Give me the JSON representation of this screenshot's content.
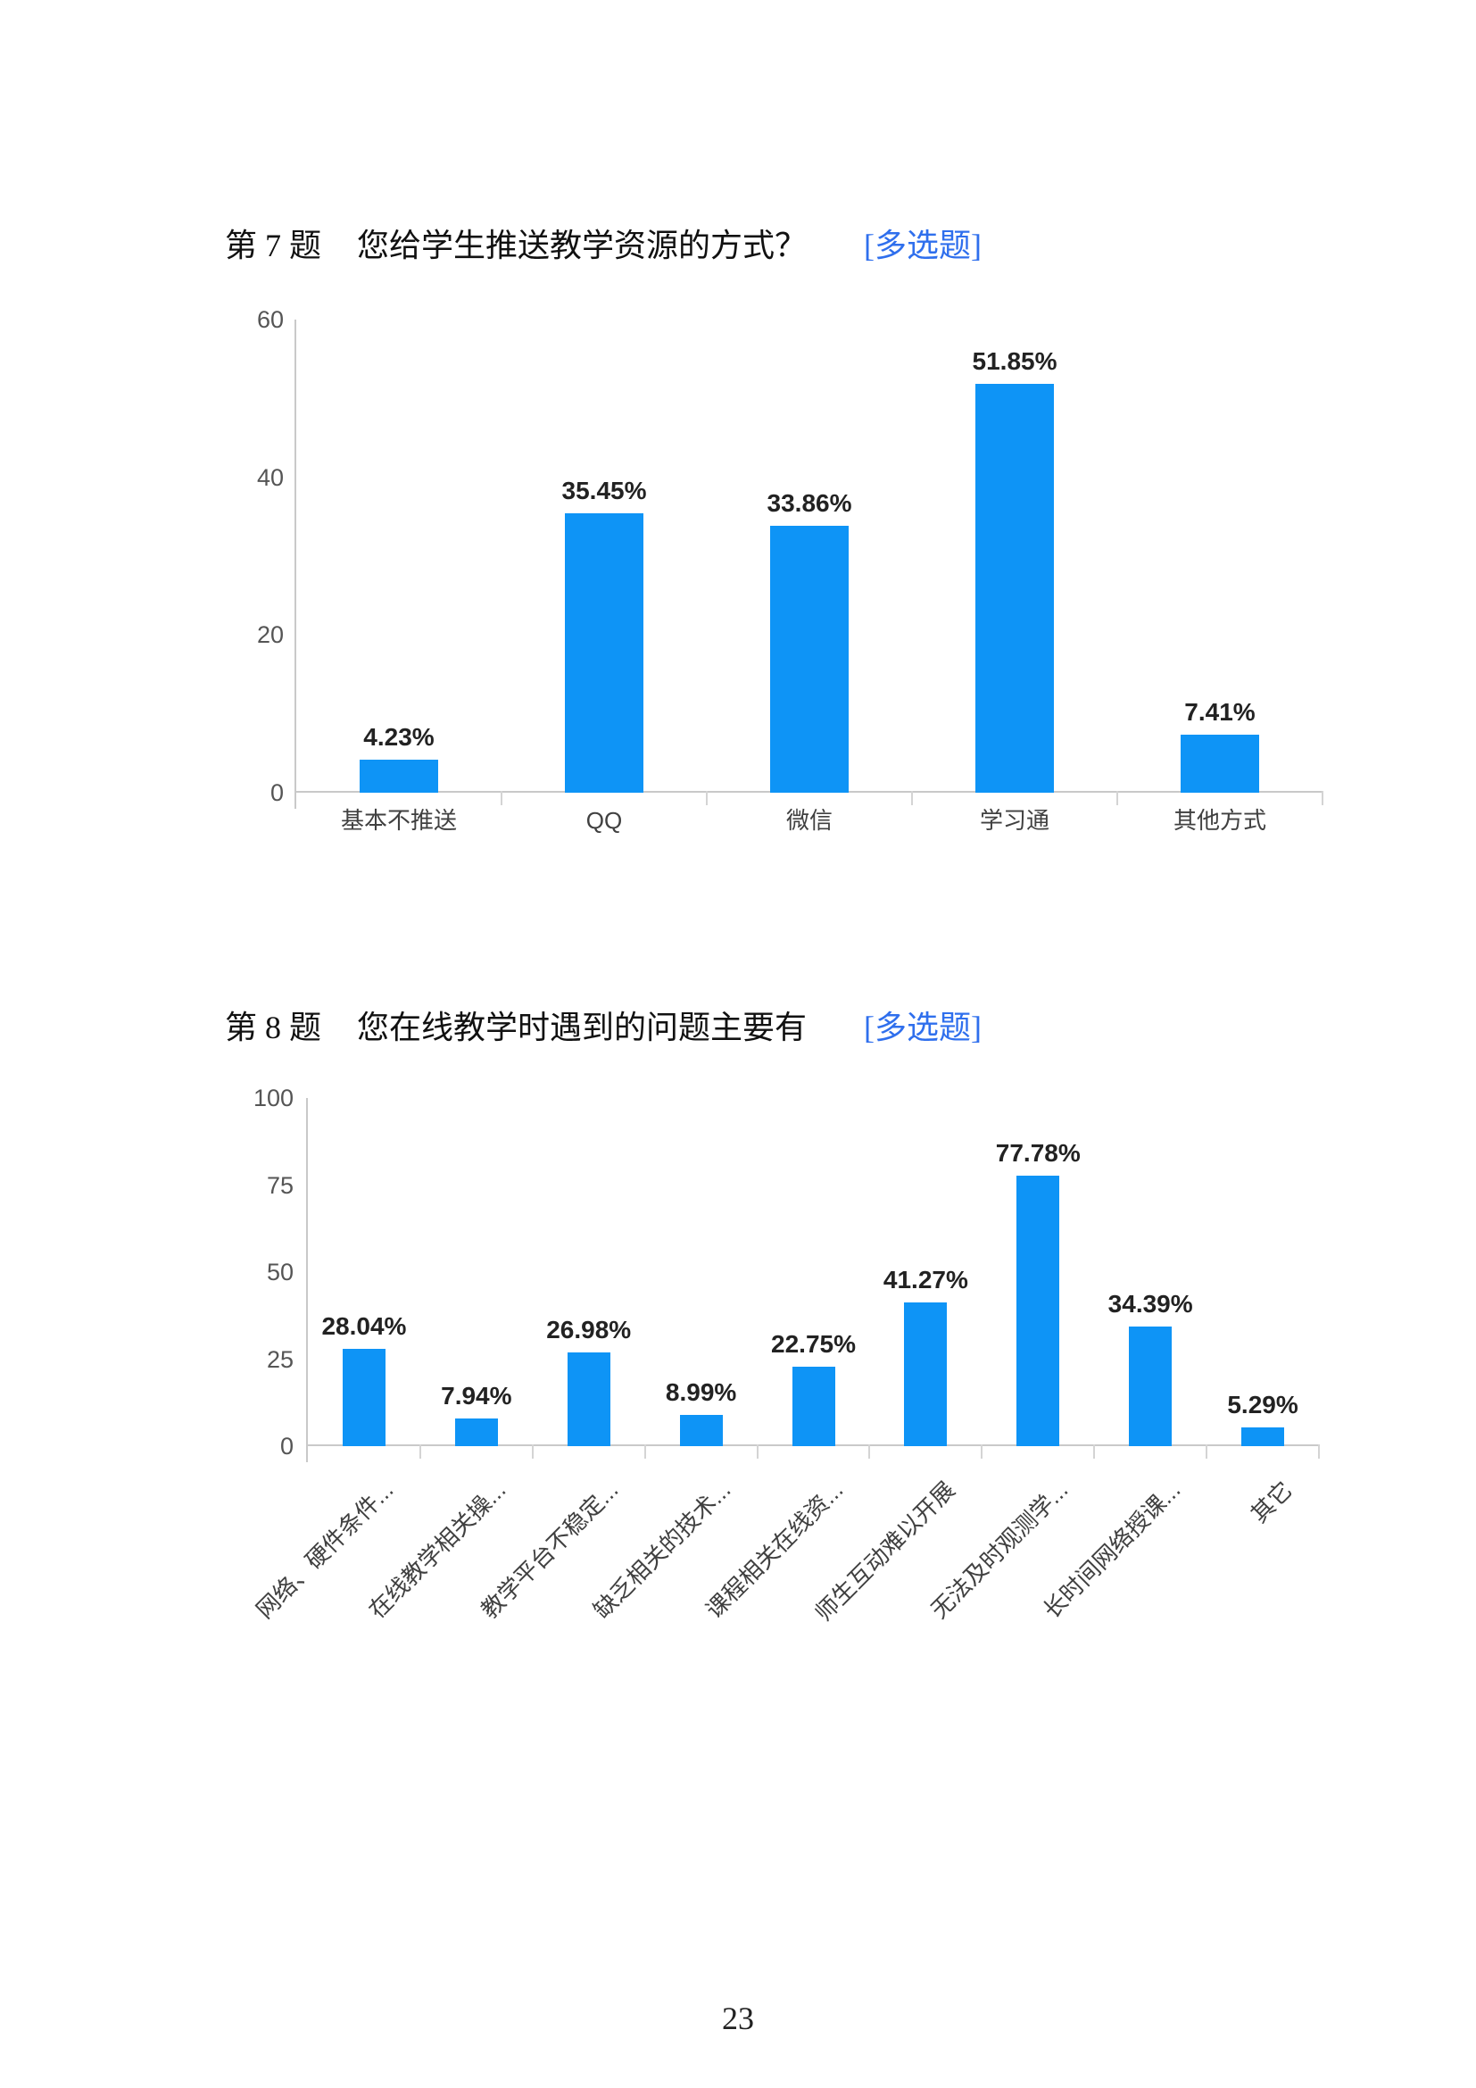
{
  "page_number": "23",
  "colors": {
    "bar_blue": "#0E94F6",
    "tag_blue": "#2F6FED",
    "axis_gray": "#C9C9C9"
  },
  "questions": [
    {
      "label": "第 7 题",
      "text": "您给学生推送教学资源的方式？",
      "tag": "[多选题]"
    },
    {
      "label": "第 8 题",
      "text": "您在线教学时遇到的问题主要有",
      "tag": "[多选题]"
    }
  ],
  "chart_data": [
    {
      "type": "bar",
      "title": "第7题 您给学生推送教学资源的方式？",
      "categories": [
        "基本不推送",
        "QQ",
        "微信",
        "学习通",
        "其他方式"
      ],
      "values": [
        4.23,
        35.45,
        33.86,
        51.85,
        7.41
      ],
      "value_labels": [
        "4.23%",
        "35.45%",
        "33.86%",
        "51.85%",
        "7.41%"
      ],
      "xlabel": "",
      "ylabel": "",
      "ylim": [
        0,
        60
      ],
      "yticks": [
        60,
        40,
        20,
        0
      ],
      "grid": false,
      "legend": "none",
      "bar_color": "#0E94F6",
      "category_label_style": "horizontal"
    },
    {
      "type": "bar",
      "title": "第8题 您在线教学时遇到的问题主要有",
      "categories": [
        "网络、硬件条件...",
        "在线教学相关操...",
        "教学平台不稳定...",
        "缺乏相关的技术...",
        "课程相关在线资...",
        "师生互动难以开展",
        "无法及时观测学...",
        "长时间网络授课...",
        "其它"
      ],
      "values": [
        28.04,
        7.94,
        26.98,
        8.99,
        22.75,
        41.27,
        77.78,
        34.39,
        5.29
      ],
      "value_labels": [
        "28.04%",
        "7.94%",
        "26.98%",
        "8.99%",
        "22.75%",
        "41.27%",
        "77.78%",
        "34.39%",
        "5.29%"
      ],
      "xlabel": "",
      "ylabel": "",
      "ylim": [
        0,
        100
      ],
      "yticks": [
        100,
        75,
        50,
        25,
        0
      ],
      "grid": false,
      "legend": "none",
      "bar_color": "#0E94F6",
      "category_label_style": "rotated-45"
    }
  ]
}
